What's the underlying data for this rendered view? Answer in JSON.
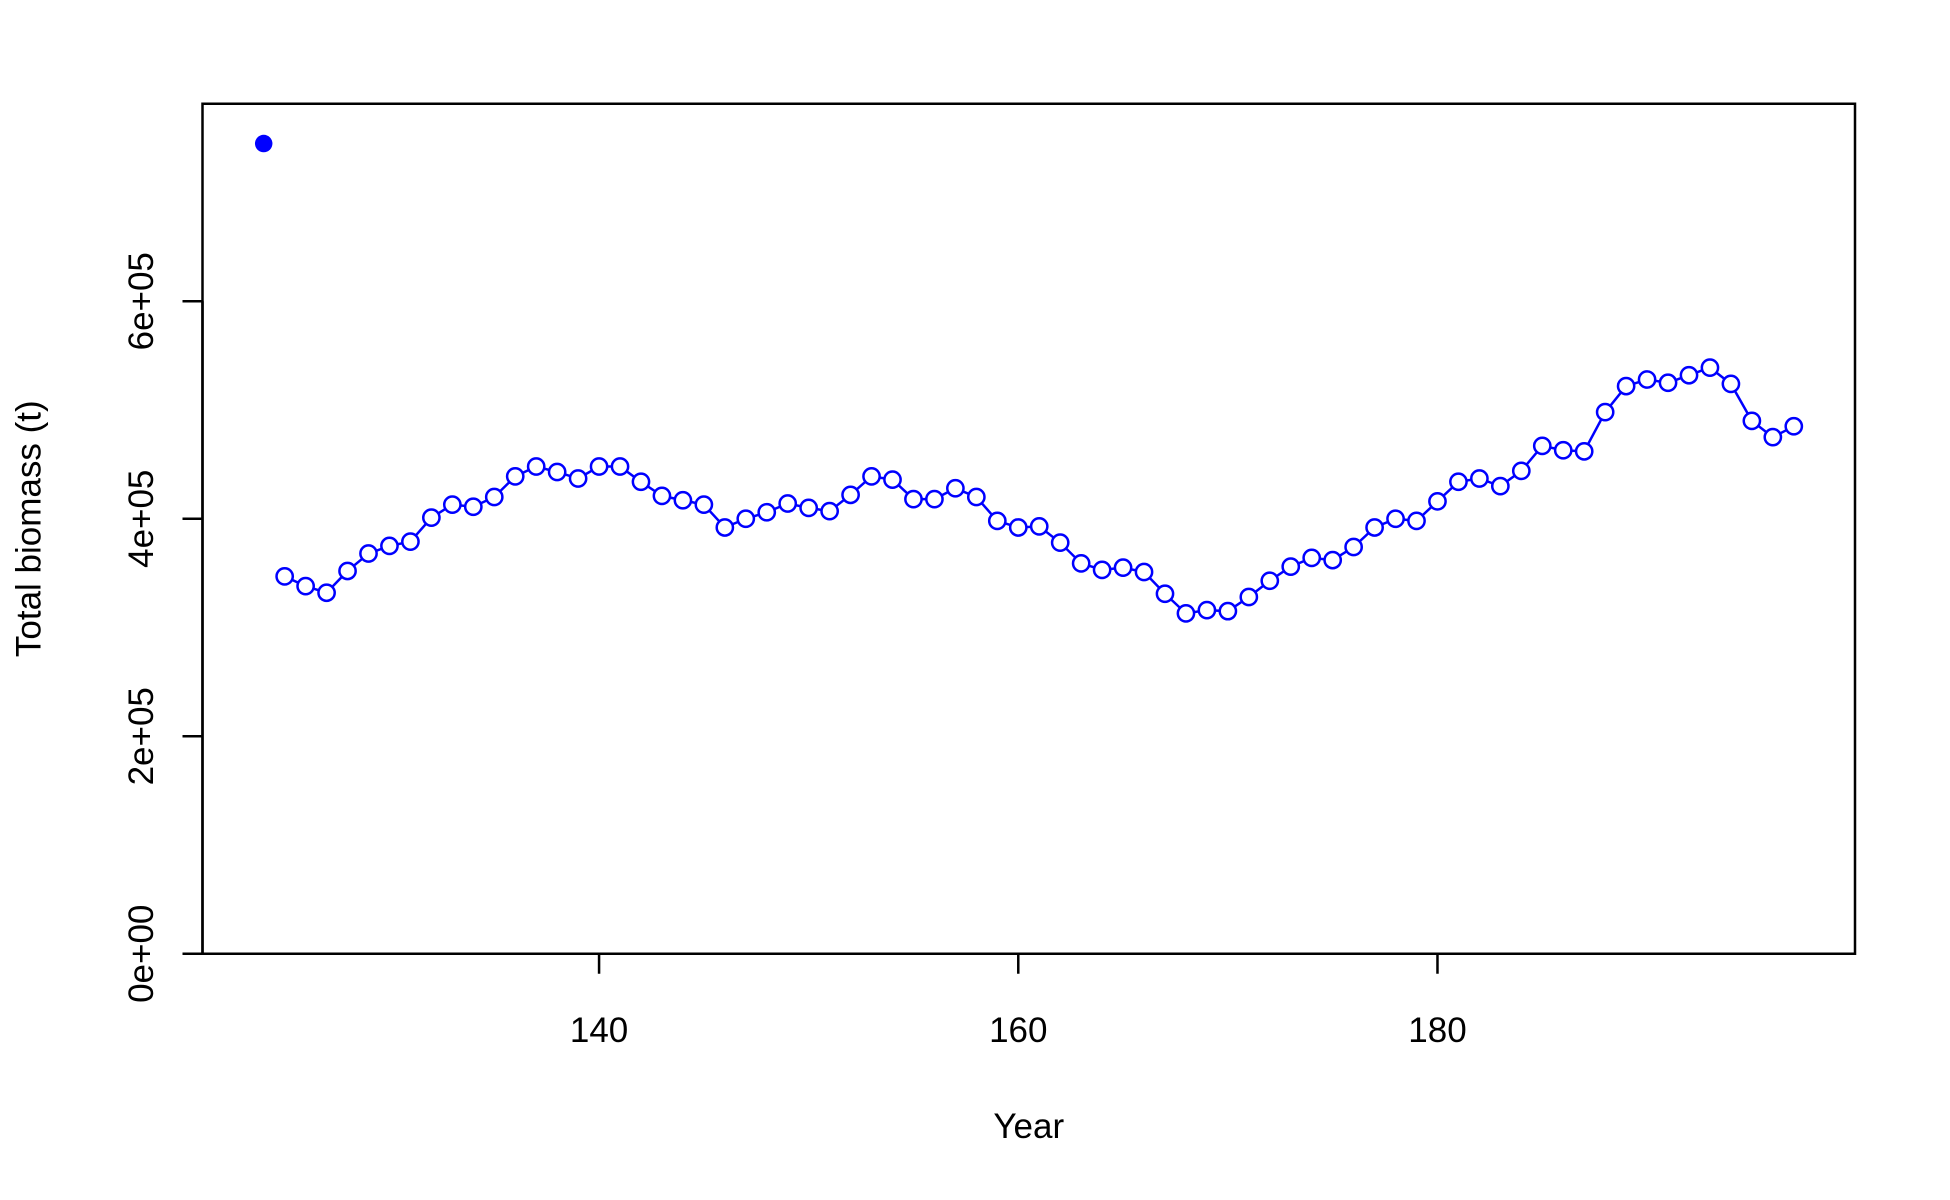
{
  "chart_data": {
    "type": "line",
    "x_label": "Year",
    "y_label": "Total biomass (t)",
    "xlim": [
      121.08,
      199.92
    ],
    "ylim": [
      0,
      781600
    ],
    "xticks": [
      140,
      160,
      180
    ],
    "yticks": [
      {
        "value": 0,
        "label": "0e+00"
      },
      {
        "value": 200000,
        "label": "2e+05"
      },
      {
        "value": 400000,
        "label": "4e+05"
      },
      {
        "value": 600000,
        "label": "6e+05"
      }
    ],
    "grid": false,
    "series": [
      {
        "color": "#0000ff",
        "marker": "filled",
        "line": false,
        "x": [
          124
        ],
        "values": [
          745000
        ]
      },
      {
        "color": "#0000ff",
        "marker": "open",
        "line": true,
        "x": [
          125,
          126,
          127,
          128,
          129,
          130,
          131,
          132,
          133,
          134,
          135,
          136,
          137,
          138,
          139,
          140,
          141,
          142,
          143,
          144,
          145,
          146,
          147,
          148,
          149,
          150,
          151,
          152,
          153,
          154,
          155,
          156,
          157,
          158,
          159,
          160,
          161,
          162,
          163,
          164,
          165,
          166,
          167,
          168,
          169,
          170,
          171,
          172,
          173,
          174,
          175,
          176,
          177,
          178,
          179,
          180,
          181,
          182,
          183,
          184,
          185,
          186,
          187,
          188,
          189,
          190,
          191,
          192,
          193,
          194,
          195,
          196,
          197
        ],
        "values": [
          347000,
          338000,
          332000,
          352000,
          368000,
          375000,
          379000,
          401000,
          413000,
          411000,
          420000,
          439000,
          448000,
          443000,
          437000,
          448000,
          448000,
          434000,
          421000,
          417000,
          413000,
          392000,
          400000,
          406000,
          414000,
          410000,
          407000,
          422000,
          439000,
          436000,
          418000,
          418000,
          428000,
          420000,
          398000,
          392000,
          393000,
          378000,
          359000,
          353000,
          355000,
          351000,
          331000,
          313000,
          316000,
          315000,
          328000,
          343000,
          356000,
          364000,
          362000,
          374000,
          392000,
          400000,
          398000,
          416000,
          434000,
          437000,
          430000,
          444000,
          467000,
          463000,
          462000,
          498000,
          522000,
          528000,
          525000,
          532000,
          539000,
          524000,
          490000,
          475000,
          485000
        ]
      }
    ]
  }
}
